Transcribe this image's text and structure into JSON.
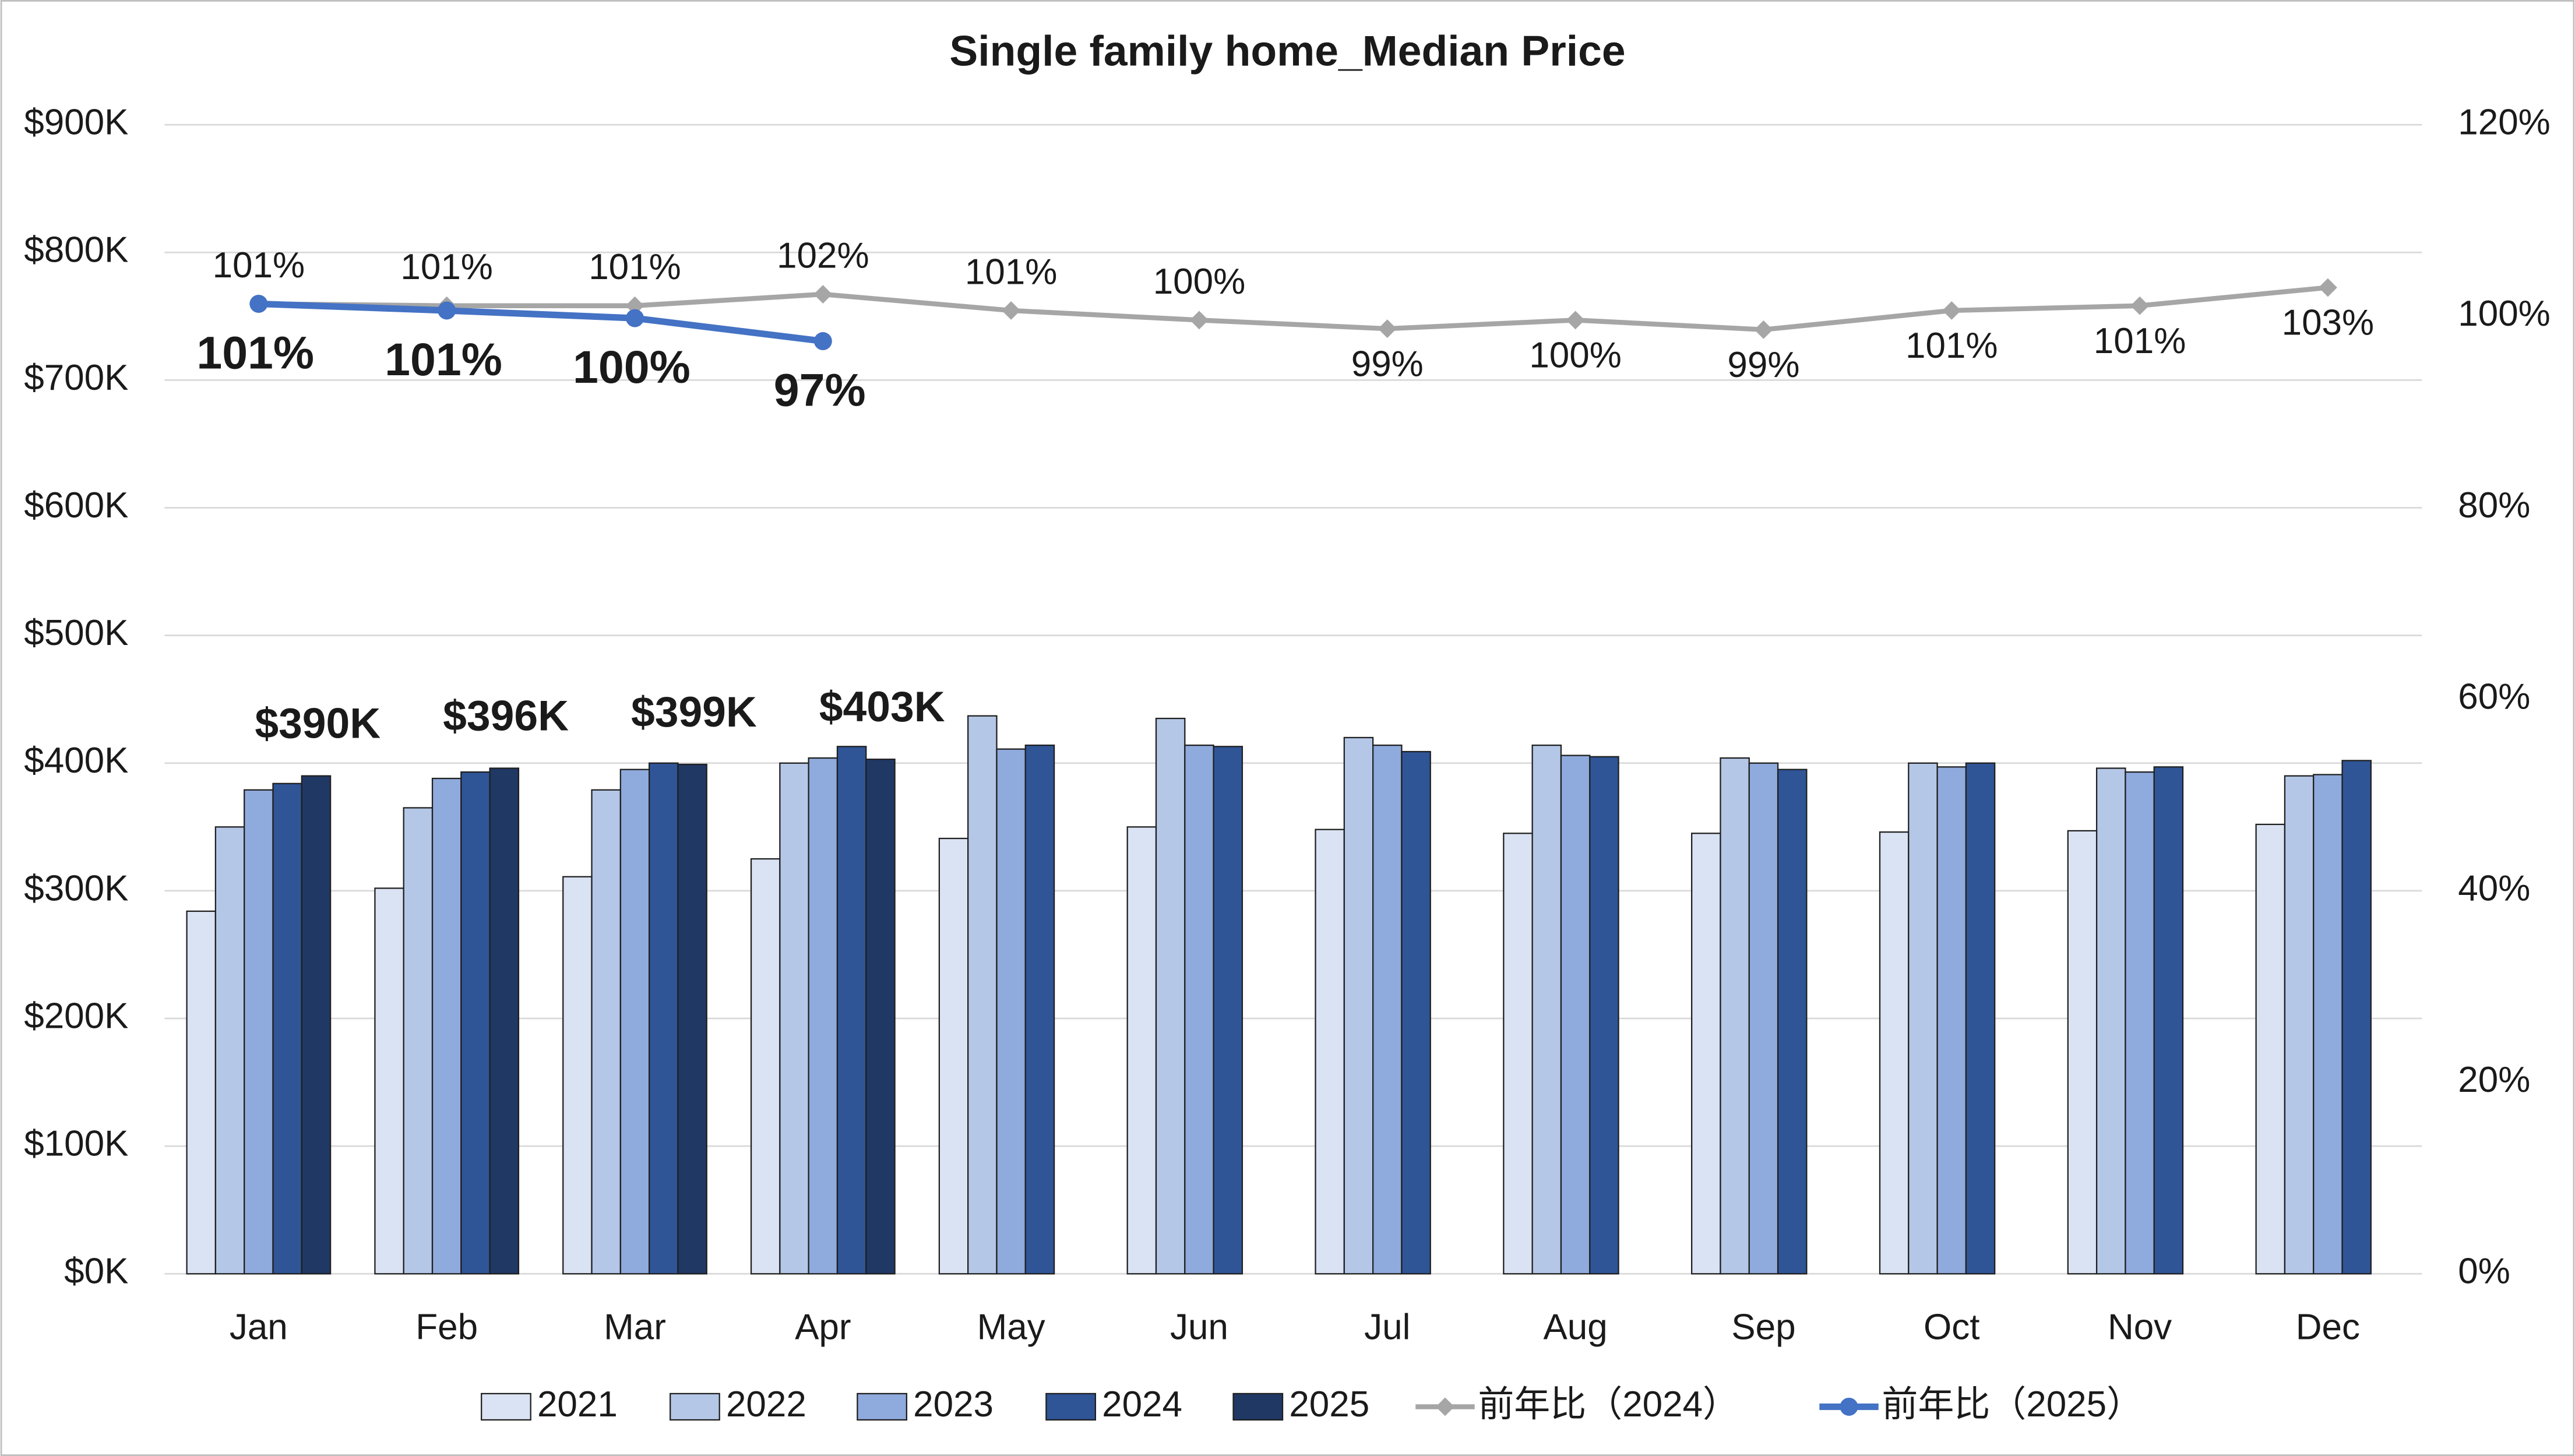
{
  "chart_data": {
    "type": "bar",
    "title": "Single family home_Median Price",
    "categories": [
      "Jan",
      "Feb",
      "Mar",
      "Apr",
      "May",
      "Jun",
      "Jul",
      "Aug",
      "Sep",
      "Oct",
      "Nov",
      "Dec"
    ],
    "series": [
      {
        "name": "2021",
        "type": "bar",
        "color": "#dae3f3",
        "values": [
          284000,
          302000,
          311000,
          325000,
          341000,
          350000,
          348000,
          345000,
          345000,
          346000,
          347000,
          352000
        ]
      },
      {
        "name": "2022",
        "type": "bar",
        "color": "#b4c7e7",
        "values": [
          350000,
          365000,
          379000,
          400000,
          437000,
          435000,
          420000,
          414000,
          404000,
          400000,
          396000,
          390000
        ]
      },
      {
        "name": "2023",
        "type": "bar",
        "color": "#8faadc",
        "values": [
          379000,
          388000,
          395000,
          404000,
          411000,
          414000,
          414000,
          406000,
          400000,
          397000,
          393000,
          391000
        ]
      },
      {
        "name": "2024",
        "type": "bar",
        "color": "#2f5597",
        "values": [
          384000,
          393000,
          400000,
          413000,
          414000,
          413000,
          409000,
          405000,
          395000,
          400000,
          397000,
          402000
        ]
      },
      {
        "name": "2025",
        "type": "bar",
        "color": "#203864",
        "values": [
          390000,
          396000,
          399000,
          403000,
          null,
          null,
          null,
          null,
          null,
          null,
          null,
          null
        ],
        "value_labels": [
          "$390K",
          "$396K",
          "$399K",
          "$403K",
          null,
          null,
          null,
          null,
          null,
          null,
          null,
          null
        ]
      },
      {
        "name": "前年比（2024）",
        "type": "line",
        "axis": "y2",
        "color": "#a6a6a6",
        "values": [
          101.3,
          101.1,
          101.1,
          102.3,
          100.6,
          99.6,
          98.7,
          99.6,
          98.6,
          100.6,
          101.1,
          103.0
        ],
        "value_labels": [
          "101%",
          "101%",
          "101%",
          "102%",
          "101%",
          "100%",
          "99%",
          "100%",
          "99%",
          "101%",
          "101%",
          "103%"
        ]
      },
      {
        "name": "前年比（2025）",
        "type": "line",
        "axis": "y2",
        "color": "#4472c4",
        "values": [
          101.3,
          100.6,
          99.8,
          97.4,
          null,
          null,
          null,
          null,
          null,
          null,
          null,
          null
        ],
        "value_labels": [
          "101%",
          "101%",
          "100%",
          "97%",
          null,
          null,
          null,
          null,
          null,
          null,
          null,
          null
        ]
      }
    ],
    "ylim": [
      0,
      900000
    ],
    "yticks": [
      {
        "value": 0,
        "label": "$0K"
      },
      {
        "value": 100000,
        "label": "$100K"
      },
      {
        "value": 200000,
        "label": "$200K"
      },
      {
        "value": 300000,
        "label": "$300K"
      },
      {
        "value": 400000,
        "label": "$400K"
      },
      {
        "value": 500000,
        "label": "$500K"
      },
      {
        "value": 600000,
        "label": "$600K"
      },
      {
        "value": 700000,
        "label": "$700K"
      },
      {
        "value": 800000,
        "label": "$800K"
      },
      {
        "value": 900000,
        "label": "$900K"
      }
    ],
    "y2lim": [
      0,
      120
    ],
    "y2ticks": [
      {
        "value": 0,
        "label": "0%"
      },
      {
        "value": 20,
        "label": "20%"
      },
      {
        "value": 40,
        "label": "40%"
      },
      {
        "value": 60,
        "label": "60%"
      },
      {
        "value": 80,
        "label": "80%"
      },
      {
        "value": 100,
        "label": "100%"
      },
      {
        "value": 120,
        "label": "120%"
      }
    ],
    "grid": true,
    "legend": "bottom"
  }
}
